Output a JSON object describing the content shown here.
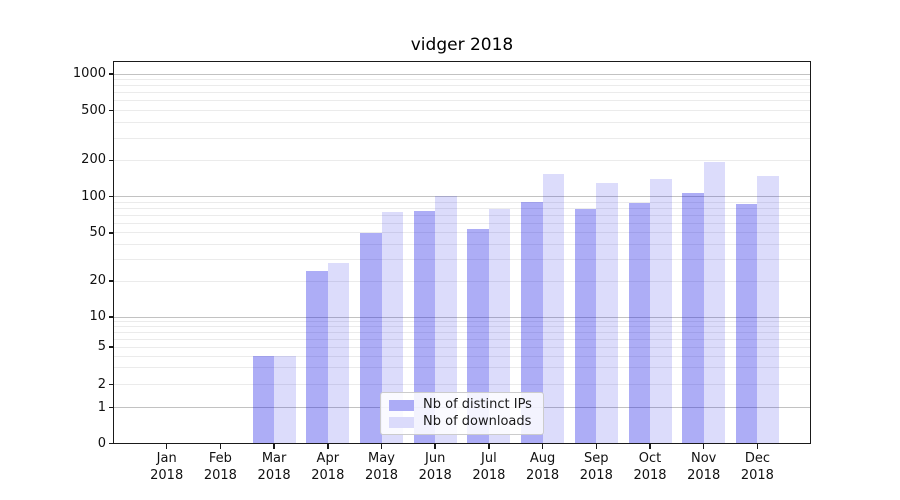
{
  "chart": {
    "title": "vidger 2018",
    "background_color": "#ffffff",
    "axis_color": "#1a1a1a"
  },
  "chart_data": {
    "type": "bar",
    "title": "vidger 2018",
    "categories": [
      "Jan 2018",
      "Feb 2018",
      "Mar 2018",
      "Apr 2018",
      "May 2018",
      "Jun 2018",
      "Jul 2018",
      "Aug 2018",
      "Sep 2018",
      "Oct 2018",
      "Nov 2018",
      "Dec 2018"
    ],
    "series": [
      {
        "name": "Nb of distinct IPs",
        "color_hex": "#acacf6",
        "color_rgba": "rgba(20,20,230,0.35)",
        "values": [
          0,
          0,
          4,
          24,
          50,
          76,
          54,
          90,
          79,
          88,
          108,
          87
        ]
      },
      {
        "name": "Nb of downloads",
        "color_hex": "#dbdbfb",
        "color_rgba": "rgba(20,20,230,0.15)",
        "values": [
          0,
          0,
          4,
          28,
          74,
          101,
          79,
          154,
          129,
          139,
          195,
          149
        ]
      }
    ],
    "xlabel": "",
    "ylabel": "",
    "yscale": "symlog",
    "yticks": [
      0,
      1,
      2,
      5,
      10,
      20,
      50,
      100,
      200,
      500,
      1000
    ],
    "ylim": [
      0,
      1300
    ],
    "grid": "both",
    "legend_position": "lower center"
  }
}
